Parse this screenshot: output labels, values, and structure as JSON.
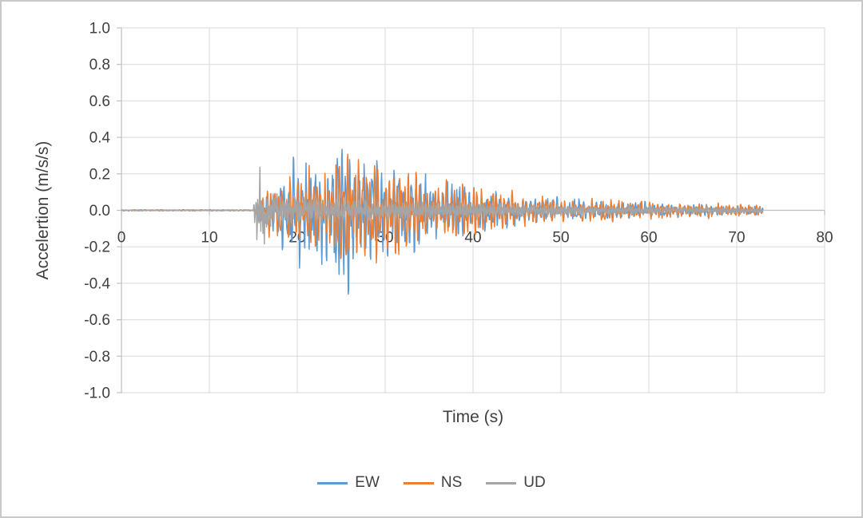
{
  "chart_data": {
    "type": "line",
    "title": "",
    "xlabel": "Time (s)",
    "ylabel": "Accelertion (m/s/s)",
    "xlim": [
      0,
      80
    ],
    "ylim": [
      -1.0,
      1.0
    ],
    "x_ticks": [
      "0",
      "10",
      "20",
      "30",
      "40",
      "50",
      "60",
      "70",
      "80"
    ],
    "y_ticks": [
      "1.0",
      "0.8",
      "0.6",
      "0.4",
      "0.2",
      "0.0",
      "-0.2",
      "-0.4",
      "-0.6",
      "-0.8",
      "-1.0"
    ],
    "grid": true,
    "legend_position": "bottom",
    "colors": {
      "grid": "#d9d9d9",
      "axis": "#bfbfbf",
      "text": "#404040"
    },
    "signal": {
      "t_start": 0,
      "t_end": 73,
      "dt": 0.05,
      "description": "Earthquake accelerogram: flat near 0 until ~15 s, strong shaking 15-35 s (peak EW ~0.43 m/s/s at ~25 s, NS ~0.3, UD ~0.2 at onset), decaying coda to ~73 s"
    },
    "series": [
      {
        "name": "EW",
        "color": "#5b9bd5",
        "seed": 101,
        "freqs": [
          2.0,
          3.6
        ],
        "envelope": [
          [
            0,
            0.003
          ],
          [
            15.2,
            0.003
          ],
          [
            15.5,
            0.04
          ],
          [
            17,
            0.09
          ],
          [
            18.5,
            0.18
          ],
          [
            20,
            0.26
          ],
          [
            22,
            0.22
          ],
          [
            24,
            0.28
          ],
          [
            25,
            0.44
          ],
          [
            25.8,
            0.38
          ],
          [
            27,
            0.22
          ],
          [
            28.5,
            0.28
          ],
          [
            30,
            0.26
          ],
          [
            31.5,
            0.2
          ],
          [
            33,
            0.22
          ],
          [
            35,
            0.14
          ],
          [
            37,
            0.13
          ],
          [
            39,
            0.13
          ],
          [
            41,
            0.11
          ],
          [
            43,
            0.09
          ],
          [
            45,
            0.08
          ],
          [
            48,
            0.06
          ],
          [
            52,
            0.05
          ],
          [
            56,
            0.04
          ],
          [
            60,
            0.04
          ],
          [
            64,
            0.03
          ],
          [
            68,
            0.025
          ],
          [
            73,
            0.02
          ]
        ]
      },
      {
        "name": "NS",
        "color": "#ed7d31",
        "seed": 202,
        "freqs": [
          2.3,
          3.2
        ],
        "envelope": [
          [
            0,
            0.003
          ],
          [
            15.2,
            0.003
          ],
          [
            15.5,
            0.05
          ],
          [
            17,
            0.12
          ],
          [
            19,
            0.16
          ],
          [
            21,
            0.2
          ],
          [
            23,
            0.22
          ],
          [
            25,
            0.32
          ],
          [
            26.5,
            0.28
          ],
          [
            28,
            0.22
          ],
          [
            30,
            0.26
          ],
          [
            32,
            0.24
          ],
          [
            34,
            0.16
          ],
          [
            36,
            0.13
          ],
          [
            38,
            0.14
          ],
          [
            40,
            0.13
          ],
          [
            42,
            0.11
          ],
          [
            45,
            0.08
          ],
          [
            48,
            0.07
          ],
          [
            52,
            0.06
          ],
          [
            56,
            0.05
          ],
          [
            60,
            0.04
          ],
          [
            64,
            0.035
          ],
          [
            68,
            0.03
          ],
          [
            73,
            0.025
          ]
        ]
      },
      {
        "name": "UD",
        "color": "#a5a5a5",
        "seed": 303,
        "freqs": [
          4.6,
          7.2
        ],
        "envelope": [
          [
            0,
            0.003
          ],
          [
            15.0,
            0.003
          ],
          [
            15.2,
            0.12
          ],
          [
            15.5,
            0.22
          ],
          [
            16.2,
            0.16
          ],
          [
            17,
            0.09
          ],
          [
            18,
            0.07
          ],
          [
            20,
            0.07
          ],
          [
            22,
            0.06
          ],
          [
            25,
            0.06
          ],
          [
            28,
            0.05
          ],
          [
            31,
            0.05
          ],
          [
            35,
            0.045
          ],
          [
            40,
            0.04
          ],
          [
            45,
            0.035
          ],
          [
            50,
            0.03
          ],
          [
            55,
            0.025
          ],
          [
            60,
            0.022
          ],
          [
            65,
            0.02
          ],
          [
            70,
            0.018
          ],
          [
            73,
            0.015
          ]
        ]
      }
    ]
  },
  "legend": {
    "items": [
      {
        "label": "EW"
      },
      {
        "label": "NS"
      },
      {
        "label": "UD"
      }
    ]
  }
}
